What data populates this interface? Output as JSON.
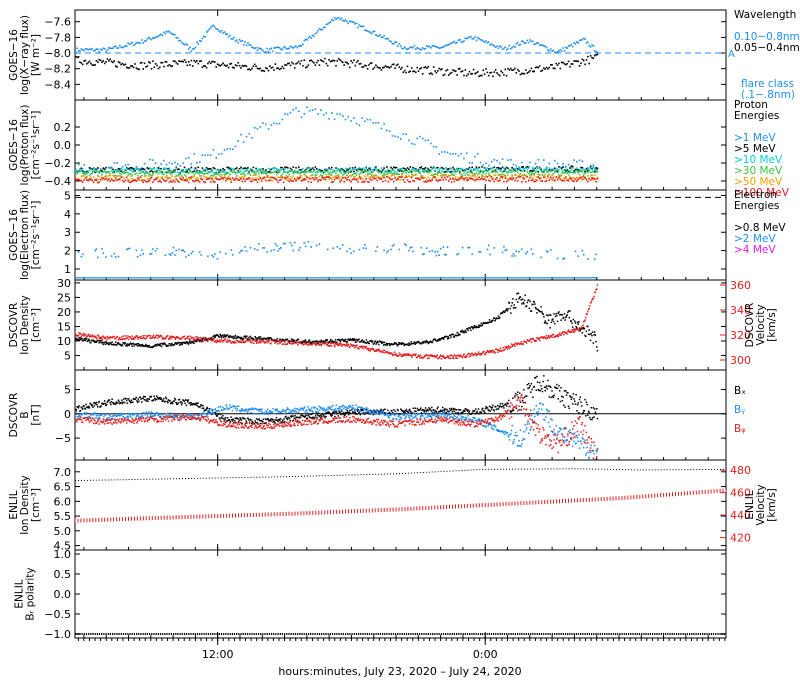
{
  "x_axis": {
    "label": "hours:minutes, July 23, 2020 – July 24, 2020",
    "ticks": [
      {
        "t": 12,
        "label": "12:00"
      },
      {
        "t": 24,
        "label": "0:00"
      }
    ],
    "range_hours": [
      5.6,
      34.8
    ],
    "data_end_hours": 29.0
  },
  "panels": [
    {
      "id": "xray",
      "ylabel_lines": [
        "GOES−16",
        "log(X−ray flux)",
        "[W m⁻²]"
      ],
      "yrange": [
        -8.6,
        -7.45
      ],
      "yticks": [
        -7.6,
        -7.8,
        -8.0,
        -8.2,
        -8.4
      ],
      "ytick_labels": [
        "−7.6",
        "−7.8",
        "−8.0",
        "−8.2",
        "−8.4"
      ],
      "legend_title": [
        "Wavelength"
      ],
      "legend": [
        {
          "name": "0.10−0.8nm",
          "color": "#1f8ef0"
        },
        {
          "name": "0.05−0.4nm",
          "color": "#000000"
        }
      ],
      "legend_extra": [
        "flare class",
        "(.1−.8nm)"
      ],
      "legend_extra_color": "#1f8ef0",
      "reference": {
        "y": -8.0,
        "label": "A",
        "color": "#1f8ef0"
      }
    },
    {
      "id": "proton",
      "ylabel_lines": [
        "GOES−16",
        "log(Proton flux)",
        "[cm⁻²s⁻¹sr⁻¹]"
      ],
      "yrange": [
        -0.5,
        0.5
      ],
      "yticks": [
        0.2,
        0.0,
        -0.2,
        -0.4
      ],
      "ytick_labels": [
        "0.2",
        "0.0",
        "−0.2",
        "−0.4"
      ],
      "legend_title": [
        "Proton",
        "Energies"
      ],
      "legend": [
        {
          "name": ">1 MeV",
          "color": "#1f8ef0"
        },
        {
          "name": ">5 MeV",
          "color": "#000000"
        },
        {
          "name": ">10 MeV",
          "color": "#00d0d0"
        },
        {
          "name": ">30 MeV",
          "color": "#40c040"
        },
        {
          "name": ">50 MeV",
          "color": "#f0a000"
        },
        {
          "name": ">100 MeV",
          "color": "#e02020"
        }
      ]
    },
    {
      "id": "electron",
      "ylabel_lines": [
        "GOES−16",
        "log(Electron flux)",
        "[cm⁻²s⁻¹sr⁻¹]"
      ],
      "yrange": [
        0.4,
        5.3
      ],
      "yticks": [
        5,
        4,
        3,
        2,
        1
      ],
      "ytick_labels": [
        "5",
        "4",
        "3",
        "2",
        "1"
      ],
      "legend_title": [
        "Electron",
        "Energies"
      ],
      "legend": [
        {
          "name": ">0.8 MeV",
          "color": "#000000"
        },
        {
          "name": ">2 MeV",
          "color": "#1f8ef0"
        },
        {
          "name": ">4 MeV",
          "color": "#e020e0"
        }
      ],
      "reference": {
        "y": 4.9,
        "label": "",
        "color": "#000000"
      }
    },
    {
      "id": "dscovr_density",
      "ylabel_lines": [
        "DSCOVR",
        "Ion Density",
        "[cm⁻³]"
      ],
      "yrange": [
        0,
        31
      ],
      "yticks": [
        30,
        25,
        20,
        15,
        10,
        5
      ],
      "ytick_labels": [
        "30",
        "25",
        "20",
        "15",
        "10",
        "5"
      ],
      "right_ylabel_lines": [
        "DSCOVR",
        "Velocity",
        "[km/s]"
      ],
      "right_yrange": [
        292,
        364
      ],
      "right_yticks": [
        360,
        340,
        320,
        300
      ],
      "right_ytick_labels": [
        "360",
        "340",
        "320",
        "300"
      ],
      "right_color": "#e02020"
    },
    {
      "id": "dscovr_b",
      "ylabel_lines": [
        "DSCOVR",
        "B",
        "[nT]"
      ],
      "yrange": [
        -9.5,
        9
      ],
      "yticks": [
        5,
        0,
        -5
      ],
      "ytick_labels": [
        "5",
        "0",
        "−5"
      ],
      "zero_line": true,
      "legend": [
        {
          "name": "Bₓ",
          "color": "#000000"
        },
        {
          "name": "Bᵧ",
          "color": "#1f8ef0"
        },
        {
          "name": "Bᵩ",
          "color": "#e02020"
        }
      ]
    },
    {
      "id": "enlil_density",
      "ylabel_lines": [
        "ENLIL",
        "Ion Density",
        "[cm⁻³]"
      ],
      "yrange": [
        4.35,
        7.4
      ],
      "yticks": [
        7.0,
        6.5,
        6.0,
        5.5,
        5.0,
        4.5
      ],
      "ytick_labels": [
        "7.0",
        "6.5",
        "6.0",
        "5.5",
        "5.0",
        "4.5"
      ],
      "right_ylabel_lines": [
        "ENLIL",
        "Velocity",
        "[km/s]"
      ],
      "right_yrange": [
        409,
        489
      ],
      "right_yticks": [
        480,
        460,
        440,
        420
      ],
      "right_ytick_labels": [
        "480",
        "460",
        "440",
        "420"
      ],
      "right_color": "#e02020"
    },
    {
      "id": "enlil_polarity",
      "ylabel_lines": [
        "ENLIL",
        "Bᵣ polarity"
      ],
      "yrange": [
        -1.1,
        1.1
      ],
      "yticks": [
        1.0,
        0.5,
        0.0,
        -0.5,
        -1.0
      ],
      "ytick_labels": [
        "1.0",
        "0.5",
        "0.0",
        "−0.5",
        "−1.0"
      ]
    }
  ],
  "chart_data": [
    {
      "type": "scatter",
      "title": "",
      "ylabel": "GOES−16 log(X−ray flux) [W m⁻²]",
      "xlabel": "hours:minutes, July 23, 2020 – July 24, 2020",
      "ylim": [
        -8.6,
        -7.45
      ],
      "series": [
        {
          "name": "0.10−0.8nm",
          "x": [
            5.6,
            7,
            8.5,
            9.8,
            10.8,
            11.8,
            12.6,
            14,
            15.6,
            17.3,
            18.7,
            20.3,
            22,
            23.4,
            24.8,
            25.9,
            27.2,
            28.4,
            29.0
          ],
          "values": [
            -7.95,
            -7.95,
            -7.85,
            -7.72,
            -7.95,
            -7.64,
            -7.8,
            -7.96,
            -7.91,
            -7.53,
            -7.69,
            -7.92,
            -7.92,
            -7.79,
            -7.94,
            -7.83,
            -7.98,
            -7.82,
            -7.97
          ]
        },
        {
          "name": "0.05−0.4nm",
          "x": [
            5.6,
            8.5,
            11,
            14,
            17,
            20.3,
            23.4,
            25,
            27.2,
            29.0
          ],
          "values": [
            -8.08,
            -8.15,
            -8.12,
            -8.18,
            -8.1,
            -8.19,
            -8.25,
            -8.23,
            -8.17,
            -8.05
          ]
        }
      ]
    },
    {
      "type": "scatter",
      "title": "",
      "ylabel": "GOES−16 log(Proton flux) [cm⁻²s⁻¹sr⁻¹]",
      "xlabel": "hours:minutes, July 23, 2020 – July 24, 2020",
      "ylim": [
        -0.5,
        0.5
      ],
      "series": [
        {
          "name": ">1 MeV",
          "x": [
            5.6,
            8.6,
            11.6,
            14,
            15.5,
            17.5,
            20,
            22.5,
            25,
            29.0
          ],
          "values": [
            -0.24,
            -0.22,
            -0.12,
            0.2,
            0.38,
            0.35,
            0.15,
            -0.1,
            -0.2,
            -0.22
          ]
        },
        {
          "name": ">5 MeV",
          "x": [
            5.6,
            29.0
          ],
          "values": [
            -0.27,
            -0.26
          ]
        },
        {
          "name": ">10 MeV",
          "x": [
            5.6,
            29.0
          ],
          "values": [
            -0.28,
            -0.27
          ]
        },
        {
          "name": ">30 MeV",
          "x": [
            5.6,
            29.0
          ],
          "values": [
            -0.31,
            -0.3
          ]
        },
        {
          "name": ">50 MeV",
          "x": [
            5.6,
            29.0
          ],
          "values": [
            -0.36,
            -0.35
          ]
        },
        {
          "name": ">100 MeV",
          "x": [
            5.6,
            29.0
          ],
          "values": [
            -0.38,
            -0.37
          ]
        }
      ]
    },
    {
      "type": "scatter",
      "title": "",
      "ylabel": "GOES−16 log(Electron flux) [cm⁻²s⁻¹sr⁻¹]",
      "xlabel": "hours:minutes, July 23, 2020 – July 24, 2020",
      "ylim": [
        0.4,
        5.3
      ],
      "series": [
        {
          "name": ">0.8 MeV",
          "x": [],
          "values": []
        },
        {
          "name": ">2 MeV",
          "x": [
            6.5,
            10,
            12,
            14,
            16,
            18,
            20,
            22,
            24,
            26,
            28.2
          ],
          "values": [
            1.9,
            2.0,
            1.8,
            2.2,
            2.3,
            2.1,
            2.2,
            2.0,
            2.1,
            1.9,
            1.8
          ],
          "baseline": 0.55
        },
        {
          "name": ">4 MeV",
          "x": [],
          "values": []
        }
      ]
    },
    {
      "type": "line",
      "title": "",
      "ylabel": "DSCOVR Ion Density [cm⁻³]",
      "y2label": "DSCOVR Velocity [km/s]",
      "xlabel": "hours:minutes, July 23, 2020 – July 24, 2020",
      "ylim": [
        0,
        31
      ],
      "y2lim": [
        292,
        364
      ],
      "series": [
        {
          "name": "Ion Density",
          "axis": "left",
          "x": [
            5.6,
            7,
            9,
            11,
            12,
            14,
            16,
            18,
            20,
            21.5,
            22.5,
            23.5,
            24.5,
            25.5,
            26.2,
            26.8,
            27.5,
            28.2,
            28.8,
            29.0
          ],
          "values": [
            11,
            9.5,
            8.5,
            10,
            12,
            11,
            10,
            10.5,
            9,
            10,
            12,
            15,
            18,
            25,
            22,
            17,
            20,
            15,
            12,
            9
          ]
        },
        {
          "name": "Velocity",
          "axis": "right",
          "x": [
            5.6,
            7,
            9,
            11,
            12,
            14,
            16,
            18,
            20,
            21.5,
            22.5,
            23.5,
            24.5,
            25.5,
            26.5,
            27.5,
            28.3,
            29.0
          ],
          "values": [
            321,
            318,
            319,
            318,
            316,
            315,
            314,
            312,
            305,
            303,
            303,
            305,
            308,
            314,
            318,
            322,
            326,
            360
          ]
        }
      ]
    },
    {
      "type": "line",
      "title": "",
      "ylabel": "DSCOVR B [nT]",
      "xlabel": "hours:minutes, July 23, 2020 – July 24, 2020",
      "ylim": [
        -9.5,
        9
      ],
      "series": [
        {
          "name": "Bₓ",
          "x": [
            5.6,
            7,
            9,
            11,
            12.3,
            14,
            16,
            18,
            20,
            22,
            23.5,
            24.5,
            25.6,
            26.4,
            27.3,
            28.2,
            29.0
          ],
          "values": [
            1,
            2.5,
            3.3,
            2.2,
            -1,
            -1.5,
            -0.5,
            0.5,
            0.5,
            1,
            0.5,
            1.5,
            3,
            7,
            4,
            2,
            0
          ]
        },
        {
          "name": "Bᵧ",
          "x": [
            5.6,
            7,
            9,
            11,
            12.3,
            14,
            16,
            18,
            20,
            22,
            23.5,
            24.5,
            25.6,
            26.4,
            27.3,
            28.2,
            29.0
          ],
          "values": [
            0,
            -0.5,
            0,
            -0.5,
            1.5,
            0.5,
            1,
            1.5,
            -0.5,
            0,
            -1,
            -3,
            -5,
            2,
            -4,
            -6,
            -8
          ]
        },
        {
          "name": "Bᵩ",
          "x": [
            5.6,
            7,
            9,
            11,
            12.3,
            14,
            16,
            18,
            20,
            22,
            23.5,
            24.5,
            25.6,
            26.4,
            27.3,
            28.2,
            29.0
          ],
          "values": [
            -1,
            -1.5,
            -1,
            -0.5,
            -2,
            -2.5,
            -1.5,
            -1,
            -2,
            -1,
            -2,
            -1,
            3,
            -4,
            -6,
            -2,
            -9
          ]
        }
      ]
    },
    {
      "type": "line",
      "title": "",
      "ylabel": "ENLIL Ion Density [cm⁻³]",
      "y2label": "ENLIL Velocity [km/s]",
      "xlabel": "hours:minutes, July 23, 2020 – July 24, 2020",
      "ylim": [
        4.35,
        7.4
      ],
      "y2lim": [
        409,
        489
      ],
      "series": [
        {
          "name": "Ion Density",
          "axis": "left",
          "x": [
            5.6,
            10,
            15,
            20,
            24,
            28,
            31,
            34.8
          ],
          "values": [
            6.72,
            6.78,
            6.85,
            6.95,
            7.1,
            7.12,
            7.08,
            7.1
          ]
        },
        {
          "name": "Velocity",
          "axis": "right",
          "x": [
            5.6,
            10,
            15,
            20,
            25,
            30,
            34.8
          ],
          "values": [
            435,
            438,
            441,
            445,
            450,
            455,
            462
          ]
        }
      ]
    },
    {
      "type": "line",
      "title": "",
      "ylabel": "ENLIL Bᵣ polarity",
      "xlabel": "hours:minutes, July 23, 2020 – July 24, 2020",
      "ylim": [
        -1.1,
        1.1
      ],
      "series": [
        {
          "name": "Bᵣ polarity",
          "x": [
            5.6,
            34.8
          ],
          "values": [
            -1.0,
            -1.0
          ]
        }
      ]
    }
  ]
}
